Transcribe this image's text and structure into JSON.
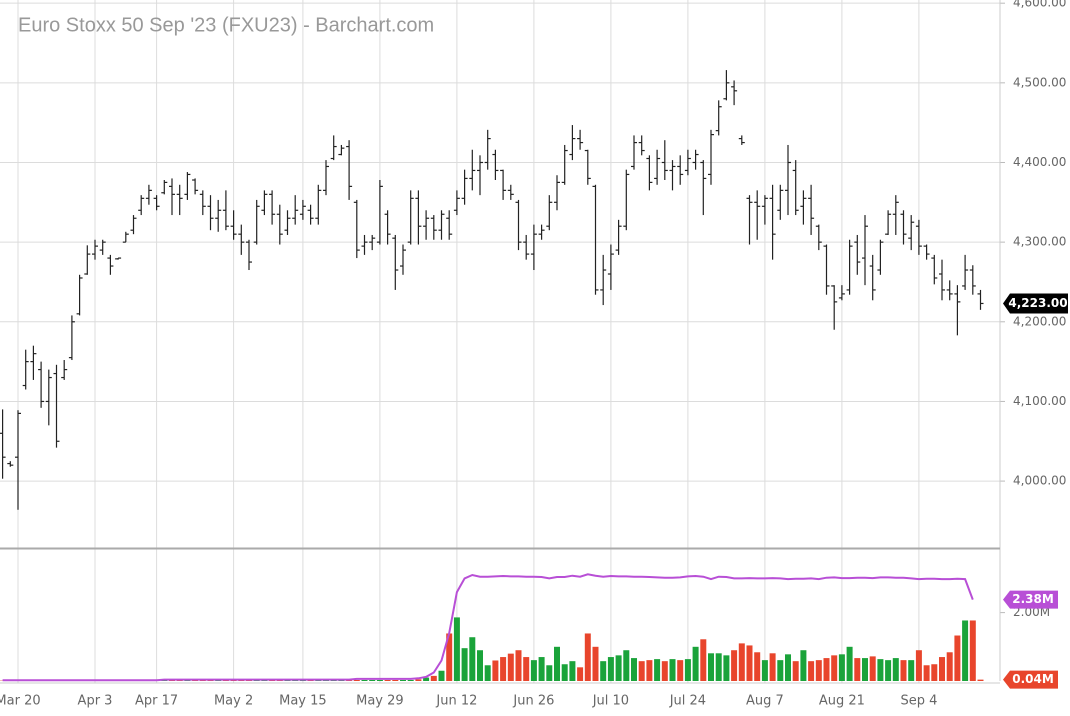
{
  "chart_data": [
    {
      "type": "ohlc",
      "title": "Euro Stoxx 50 Sep '23 (FXU23) - Barchart.com",
      "categories": [
        null,
        null,
        "Mar 20",
        null,
        null,
        null,
        null,
        null,
        null,
        null,
        null,
        null,
        "Apr 3",
        null,
        null,
        null,
        null,
        null,
        null,
        null,
        "Apr 17",
        null,
        null,
        null,
        null,
        null,
        null,
        null,
        null,
        null,
        "May 2",
        null,
        null,
        null,
        null,
        null,
        null,
        null,
        null,
        "May 15",
        null,
        null,
        null,
        null,
        null,
        null,
        null,
        null,
        null,
        "May 29",
        null,
        null,
        null,
        null,
        null,
        null,
        null,
        null,
        null,
        "Jun 12",
        null,
        null,
        null,
        null,
        null,
        null,
        null,
        null,
        null,
        "Jun 26",
        null,
        null,
        null,
        null,
        null,
        null,
        null,
        null,
        null,
        "Jul 10",
        null,
        null,
        null,
        null,
        null,
        null,
        null,
        null,
        null,
        "Jul 24",
        null,
        null,
        null,
        null,
        null,
        null,
        null,
        null,
        null,
        "Aug 7",
        null,
        null,
        null,
        null,
        null,
        null,
        null,
        null,
        null,
        "Aug 21",
        null,
        null,
        null,
        null,
        null,
        null,
        null,
        null,
        null,
        "Sep 4",
        null,
        null,
        null,
        null,
        null,
        null,
        null,
        null
      ],
      "open": [
        4060,
        4022,
        4030,
        4120,
        4150,
        4140,
        4100,
        4135,
        4130,
        4155,
        4210,
        4260,
        4285,
        4290,
        4280,
        4279,
        4300,
        4315,
        4340,
        4355,
        4355,
        4362,
        4370,
        4360,
        4360,
        4378,
        4360,
        4345,
        4330,
        4340,
        4320,
        4310,
        4300,
        4300,
        4340,
        4360,
        4335,
        4315,
        4330,
        4335,
        4340,
        4330,
        4365,
        4405,
        4410,
        4420,
        4350,
        4295,
        4300,
        4300,
        4335,
        4305,
        4270,
        4300,
        4355,
        4320,
        4330,
        4315,
        4330,
        4340,
        4355,
        4380,
        4390,
        4400,
        4410,
        4390,
        4365,
        4350,
        4300,
        4285,
        4310,
        4320,
        4350,
        4375,
        4410,
        4430,
        4415,
        4370,
        4240,
        4260,
        4290,
        4320,
        4395,
        4425,
        4405,
        4380,
        4400,
        4390,
        4395,
        4390,
        4400,
        4400,
        4385,
        4440,
        4480,
        4495,
        4430,
        4355,
        4350,
        4345,
        4355,
        4340,
        4365,
        4390,
        4345,
        4355,
        4320,
        4295,
        4245,
        4230,
        4240,
        4300,
        4280,
        4270,
        4265,
        4310,
        4335,
        4335,
        4305,
        4320,
        4295,
        4280,
        4260,
        4240,
        4235,
        4245,
        4265,
        4235
      ],
      "high": [
        4090,
        4025,
        4089,
        4165,
        4170,
        4150,
        4140,
        4146,
        4152,
        4208,
        4259,
        4296,
        4303,
        4303,
        4284,
        4280,
        4313,
        4334,
        4359,
        4372,
        4359,
        4378,
        4380,
        4372,
        4388,
        4380,
        4365,
        4359,
        4353,
        4365,
        4340,
        4322,
        4303,
        4353,
        4365,
        4365,
        4347,
        4340,
        4359,
        4353,
        4347,
        4372,
        4403,
        4434,
        4422,
        4428,
        4353,
        4309,
        4309,
        4378,
        4340,
        4309,
        4297,
        4365,
        4365,
        4340,
        4334,
        4340,
        4340,
        4365,
        4391,
        4416,
        4409,
        4441,
        4416,
        4391,
        4372,
        4353,
        4309,
        4322,
        4322,
        4359,
        4384,
        4422,
        4447,
        4441,
        4416,
        4372,
        4284,
        4297,
        4328,
        4391,
        4434,
        4434,
        4409,
        4416,
        4428,
        4403,
        4409,
        4416,
        4416,
        4403,
        4441,
        4478,
        4516,
        4503,
        4434,
        4359,
        4365,
        4359,
        4372,
        4372,
        4422,
        4403,
        4365,
        4372,
        4322,
        4297,
        4246,
        4246,
        4303,
        4309,
        4334,
        4284,
        4303,
        4340,
        4359,
        4340,
        4334,
        4328,
        4297,
        4284,
        4278,
        4252,
        4246,
        4284,
        4271,
        4240
      ],
      "low": [
        4003,
        4018,
        3964,
        4115,
        4127,
        4092,
        4070,
        4042,
        4127,
        4152,
        4208,
        4259,
        4278,
        4284,
        4259,
        4278,
        4300,
        4310,
        4334,
        4347,
        4340,
        4360,
        4334,
        4334,
        4353,
        4360,
        4334,
        4315,
        4313,
        4315,
        4303,
        4284,
        4265,
        4297,
        4334,
        4322,
        4297,
        4309,
        4322,
        4328,
        4322,
        4322,
        4359,
        4403,
        4409,
        4353,
        4280,
        4284,
        4290,
        4297,
        4297,
        4240,
        4259,
        4297,
        4297,
        4303,
        4303,
        4303,
        4303,
        4334,
        4347,
        4365,
        4359,
        4391,
        4378,
        4353,
        4353,
        4290,
        4278,
        4265,
        4303,
        4315,
        4340,
        4372,
        4403,
        4416,
        4372,
        4234,
        4221,
        4240,
        4284,
        4315,
        4391,
        4409,
        4365,
        4372,
        4378,
        4365,
        4372,
        4384,
        4391,
        4334,
        4372,
        4434,
        4478,
        4472,
        4422,
        4297,
        4303,
        4322,
        4278,
        4328,
        4334,
        4334,
        4322,
        4309,
        4290,
        4234,
        4190,
        4227,
        4234,
        4259,
        4246,
        4227,
        4259,
        4309,
        4309,
        4297,
        4290,
        4284,
        4278,
        4247,
        4227,
        4227,
        4183,
        4240,
        4234,
        4215
      ],
      "close": [
        4030,
        4020,
        4085,
        4150,
        4160,
        4100,
        4130,
        4050,
        4140,
        4200,
        4255,
        4285,
        4295,
        4300,
        4270,
        4280,
        4310,
        4330,
        4355,
        4365,
        4345,
        4375,
        4360,
        4355,
        4385,
        4365,
        4345,
        4330,
        4340,
        4320,
        4310,
        4300,
        4275,
        4345,
        4360,
        4335,
        4310,
        4330,
        4340,
        4345,
        4330,
        4365,
        4395,
        4420,
        4418,
        4370,
        4290,
        4300,
        4305,
        4370,
        4310,
        4265,
        4290,
        4355,
        4320,
        4330,
        4315,
        4335,
        4310,
        4355,
        4380,
        4390,
        4400,
        4430,
        4390,
        4365,
        4360,
        4300,
        4285,
        4310,
        4315,
        4350,
        4375,
        4415,
        4430,
        4425,
        4380,
        4240,
        4265,
        4285,
        4320,
        4385,
        4425,
        4415,
        4375,
        4405,
        4390,
        4395,
        4385,
        4405,
        4410,
        4380,
        4435,
        4470,
        4500,
        4490,
        4425,
        4350,
        4345,
        4355,
        4310,
        4365,
        4400,
        4340,
        4355,
        4330,
        4300,
        4245,
        4225,
        4235,
        4295,
        4275,
        4320,
        4240,
        4300,
        4335,
        4350,
        4310,
        4325,
        4295,
        4285,
        4255,
        4240,
        4235,
        4225,
        4265,
        4245,
        4223
      ],
      "color": "#222222",
      "ylim": [
        3916,
        4604
      ],
      "yticks": [
        {
          "value": 4000,
          "label": "4,000.00"
        },
        {
          "value": 4100,
          "label": "4,100.00"
        },
        {
          "value": 4200,
          "label": "4,200.00"
        },
        {
          "value": 4300,
          "label": "4,300.00"
        },
        {
          "value": 4400,
          "label": "4,400.00"
        },
        {
          "value": 4500,
          "label": "4,500.00"
        },
        {
          "value": 4600,
          "label": "4,600.00"
        }
      ],
      "grid": true,
      "last_price": {
        "value": 4223,
        "label": "4,223.00",
        "color": "#000000"
      }
    },
    {
      "type": "volume",
      "series": [
        {
          "type": "bar",
          "up_color": "#1aa33a",
          "down_color": "#e8452c",
          "values": [
            0.01,
            0.01,
            0.01,
            0.01,
            0.01,
            0.01,
            0.01,
            0.01,
            0.01,
            0.01,
            0.01,
            0.01,
            0.01,
            0.01,
            0.01,
            0.01,
            0.01,
            0.01,
            0.01,
            0.01,
            0.01,
            0.02,
            0.02,
            0.02,
            0.02,
            0.02,
            0.02,
            0.02,
            0.02,
            0.02,
            0.02,
            0.02,
            0.02,
            0.02,
            0.02,
            0.02,
            0.02,
            0.02,
            0.02,
            0.02,
            0.02,
            0.02,
            0.02,
            0.02,
            0.02,
            0.02,
            0.03,
            0.03,
            0.03,
            0.03,
            0.03,
            0.03,
            0.03,
            0.03,
            0.05,
            0.1,
            0.15,
            0.3,
            1.39,
            1.86,
            0.96,
            1.28,
            0.9,
            0.46,
            0.6,
            0.7,
            0.8,
            0.9,
            0.7,
            0.61,
            0.7,
            0.46,
            1.0,
            0.49,
            0.58,
            0.4,
            1.39,
            1.0,
            0.58,
            0.7,
            0.75,
            0.9,
            0.67,
            0.58,
            0.61,
            0.64,
            0.58,
            0.64,
            0.61,
            0.64,
            1.0,
            1.22,
            0.81,
            0.81,
            0.75,
            0.9,
            1.1,
            1.04,
            0.84,
            0.61,
            0.81,
            0.61,
            0.78,
            0.58,
            0.9,
            0.58,
            0.61,
            0.67,
            0.75,
            0.78,
            1.0,
            0.67,
            0.67,
            0.72,
            0.64,
            0.61,
            0.67,
            0.61,
            0.61,
            0.9,
            0.46,
            0.49,
            0.7,
            0.84,
            1.33,
            1.77,
            1.77,
            0.04
          ]
        },
        {
          "type": "line",
          "color": "#b84fd6",
          "values": [
            0.02,
            0.02,
            0.02,
            0.02,
            0.02,
            0.02,
            0.02,
            0.02,
            0.02,
            0.02,
            0.02,
            0.02,
            0.02,
            0.02,
            0.02,
            0.02,
            0.02,
            0.02,
            0.02,
            0.02,
            0.02,
            0.04,
            0.04,
            0.04,
            0.04,
            0.04,
            0.04,
            0.04,
            0.04,
            0.04,
            0.04,
            0.04,
            0.04,
            0.04,
            0.04,
            0.04,
            0.04,
            0.04,
            0.04,
            0.04,
            0.04,
            0.04,
            0.04,
            0.04,
            0.04,
            0.04,
            0.06,
            0.06,
            0.06,
            0.06,
            0.06,
            0.06,
            0.06,
            0.06,
            0.08,
            0.12,
            0.25,
            0.6,
            1.4,
            2.6,
            3.0,
            3.1,
            3.05,
            3.05,
            3.06,
            3.07,
            3.06,
            3.06,
            3.05,
            3.05,
            3.04,
            3.0,
            3.04,
            3.04,
            3.08,
            3.05,
            3.12,
            3.08,
            3.05,
            3.07,
            3.06,
            3.06,
            3.05,
            3.05,
            3.04,
            3.03,
            3.02,
            3.02,
            3.03,
            3.06,
            3.07,
            3.05,
            2.98,
            3.05,
            3.04,
            3.0,
            3.0,
            3.01,
            3.0,
            3.0,
            3.01,
            3.0,
            2.98,
            2.99,
            2.99,
            3.0,
            2.98,
            3.02,
            3.03,
            3.01,
            3.01,
            3.02,
            3.02,
            3.01,
            3.03,
            3.03,
            3.02,
            3.02,
            3.0,
            2.98,
            2.99,
            2.99,
            2.98,
            2.98,
            2.99,
            2.98,
            2.38,
            null
          ]
        }
      ],
      "ylim": [
        0,
        3.86
      ],
      "yticks": [
        {
          "value": 2,
          "label": "2.00M"
        }
      ],
      "markers": [
        {
          "value": 2.38,
          "label": "2.38M",
          "color": "#b84fd6"
        },
        {
          "value": 0.04,
          "label": "0.04M",
          "color": "#e8452c"
        }
      ]
    }
  ]
}
